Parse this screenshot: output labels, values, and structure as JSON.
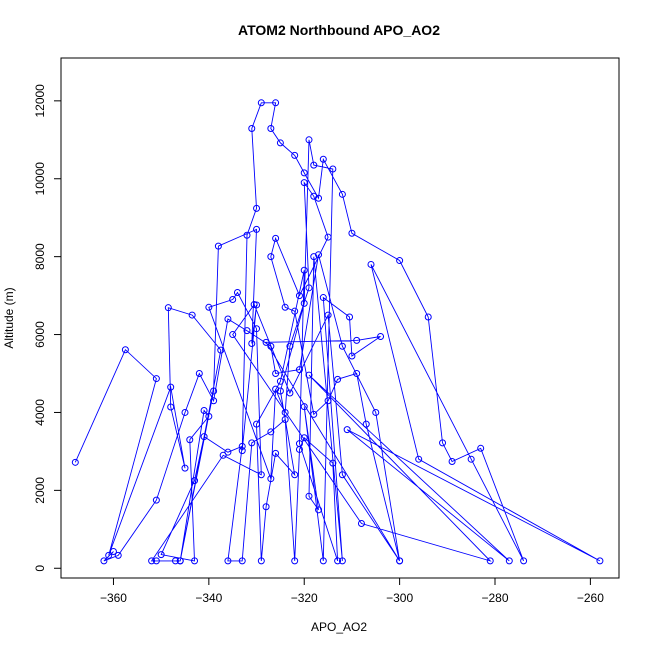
{
  "chart_data": {
    "type": "line",
    "title": "ATOM2 Northbound APO_AO2",
    "xlabel": "APO_AO2",
    "ylabel": "Altitude (m)",
    "xlim": [
      -371,
      -254
    ],
    "ylim": [
      -250,
      13100
    ],
    "x_ticks": [
      -360,
      -340,
      -320,
      -300,
      -280,
      -260
    ],
    "y_ticks": [
      0,
      2000,
      4000,
      6000,
      8000,
      10000,
      12000
    ],
    "grid": false,
    "legend": "none",
    "series": [
      {
        "color": "#0000ff",
        "marker": "open-circle",
        "points": [
          [
            -368,
            2720
          ],
          [
            -357.5,
            5610
          ],
          [
            -351,
            4870
          ],
          [
            -361,
            330
          ],
          [
            -348,
            4650
          ],
          [
            -345,
            2570
          ],
          [
            -348,
            4140
          ],
          [
            -348.5,
            6690
          ],
          [
            -343.5,
            6500
          ],
          [
            -337.5,
            5600
          ],
          [
            -346,
            190
          ],
          [
            -339,
            4550
          ],
          [
            -338,
            8270
          ],
          [
            -330,
            8700
          ],
          [
            -331,
            5770
          ],
          [
            -330,
            6760
          ],
          [
            -333,
            3020
          ],
          [
            -332,
            8550
          ],
          [
            -330,
            9240
          ],
          [
            -331,
            11290
          ],
          [
            -329,
            11950
          ],
          [
            -326,
            11950
          ],
          [
            -327,
            11290
          ],
          [
            -325,
            10920
          ],
          [
            -322,
            10600
          ],
          [
            -320,
            10150
          ],
          [
            -317,
            9500
          ],
          [
            -316,
            10500
          ],
          [
            -312,
            9600
          ],
          [
            -310,
            8600
          ],
          [
            -300,
            7900
          ],
          [
            -294,
            6450
          ],
          [
            -291,
            3220
          ],
          [
            -289,
            2740
          ],
          [
            -283,
            3080
          ],
          [
            -274,
            190
          ],
          [
            -285,
            2800
          ],
          [
            -306,
            7800
          ],
          [
            -296,
            2800
          ],
          [
            -258,
            190
          ],
          [
            -311,
            3560
          ],
          [
            -277,
            190
          ],
          [
            -319,
            4960
          ],
          [
            -281,
            190
          ],
          [
            -308,
            1150
          ],
          [
            -335,
            6000
          ],
          [
            -330.5,
            6770
          ],
          [
            -323,
            4500
          ],
          [
            -315,
            6500
          ],
          [
            -312,
            2400
          ],
          [
            -300,
            190
          ],
          [
            -328,
            5800
          ],
          [
            -309,
            5850
          ],
          [
            -304,
            5950
          ],
          [
            -310,
            5450
          ],
          [
            -310.5,
            6450
          ],
          [
            -316,
            6950
          ],
          [
            -312,
            190
          ],
          [
            -318,
            8000
          ],
          [
            -319,
            1850
          ],
          [
            -317,
            1500
          ],
          [
            -320,
            4150
          ],
          [
            -316,
            190
          ],
          [
            -314,
            10250
          ],
          [
            -318,
            10350
          ],
          [
            -319,
            11000
          ],
          [
            -320,
            6800
          ],
          [
            -325,
            4550
          ],
          [
            -322,
            2400
          ],
          [
            -326,
            2950
          ],
          [
            -328,
            1580
          ],
          [
            -329,
            190
          ],
          [
            -330,
            3700
          ],
          [
            -325,
            4800
          ],
          [
            -320,
            7650
          ],
          [
            -321,
            3200
          ],
          [
            -313,
            190
          ],
          [
            -314,
            2700
          ],
          [
            -320,
            3350
          ],
          [
            -321,
            3050
          ],
          [
            -322,
            190
          ],
          [
            -324,
            3820
          ],
          [
            -327,
            3500
          ],
          [
            -331,
            3220
          ],
          [
            -333,
            190
          ],
          [
            -336,
            190
          ],
          [
            -333,
            3130
          ],
          [
            -336,
            2980
          ],
          [
            -341,
            3380
          ],
          [
            -343,
            2250
          ],
          [
            -350,
            350
          ],
          [
            -343,
            190
          ],
          [
            -344,
            3300
          ],
          [
            -340,
            3900
          ],
          [
            -341,
            4050
          ],
          [
            -346,
            190
          ],
          [
            -347,
            190
          ],
          [
            -351,
            190
          ],
          [
            -352,
            190
          ],
          [
            -337,
            2900
          ],
          [
            -329,
            2400
          ],
          [
            -330,
            6150
          ],
          [
            -334,
            7080
          ],
          [
            -335,
            6900
          ],
          [
            -340,
            6700
          ],
          [
            -327,
            2300
          ],
          [
            -326,
            4600
          ],
          [
            -324,
            4000
          ],
          [
            -323,
            5700
          ],
          [
            -319,
            7200
          ],
          [
            -320,
            9900
          ],
          [
            -318,
            9550
          ],
          [
            -315,
            8500
          ],
          [
            -321,
            7000
          ],
          [
            -326,
            8470
          ],
          [
            -327,
            8000
          ],
          [
            -324,
            6700
          ],
          [
            -322,
            6600
          ],
          [
            -318,
            3950
          ],
          [
            -315,
            4300
          ],
          [
            -313,
            4850
          ],
          [
            -309,
            5000
          ],
          [
            -307,
            3700
          ],
          [
            -300,
            190
          ],
          [
            -305,
            4000
          ],
          [
            -312,
            5700
          ],
          [
            -317,
            8050
          ],
          [
            -321,
            5100
          ],
          [
            -326,
            5000
          ],
          [
            -327,
            5700
          ],
          [
            -332,
            6100
          ],
          [
            -336,
            6400
          ],
          [
            -339,
            4300
          ],
          [
            -342,
            5000
          ],
          [
            -345,
            4000
          ],
          [
            -351,
            1750
          ],
          [
            -359,
            330
          ],
          [
            -362,
            190
          ],
          [
            -360,
            430
          ]
        ]
      }
    ]
  }
}
